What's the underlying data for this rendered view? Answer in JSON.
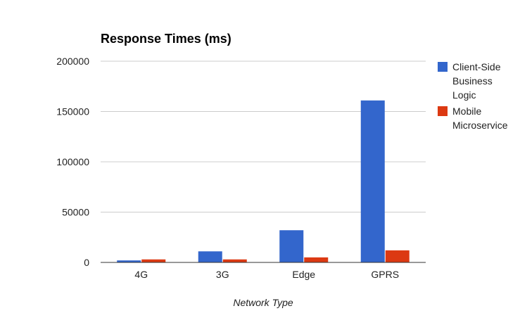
{
  "chart_data": {
    "type": "bar",
    "title": "Response Times (ms)",
    "xlabel": "Network Type",
    "ylabel": "",
    "categories": [
      "4G",
      "3G",
      "Edge",
      "GPRS"
    ],
    "series": [
      {
        "name": "Client-Side Business Logic",
        "name_lines": [
          "Client-Side",
          "Business",
          "Logic"
        ],
        "color": "#3366cc",
        "values": [
          2000,
          11000,
          32000,
          161000
        ]
      },
      {
        "name": "Mobile Microservice",
        "name_lines": [
          "Mobile",
          "Microservice"
        ],
        "color": "#dc3912",
        "values": [
          3000,
          3000,
          5000,
          12000
        ]
      }
    ],
    "ylim": [
      0,
      200000
    ],
    "yticks": [
      0,
      50000,
      100000,
      150000,
      200000
    ],
    "ytick_labels": [
      "0",
      "50000",
      "100000",
      "150000",
      "200000"
    ],
    "grid": true,
    "legend": "right"
  }
}
